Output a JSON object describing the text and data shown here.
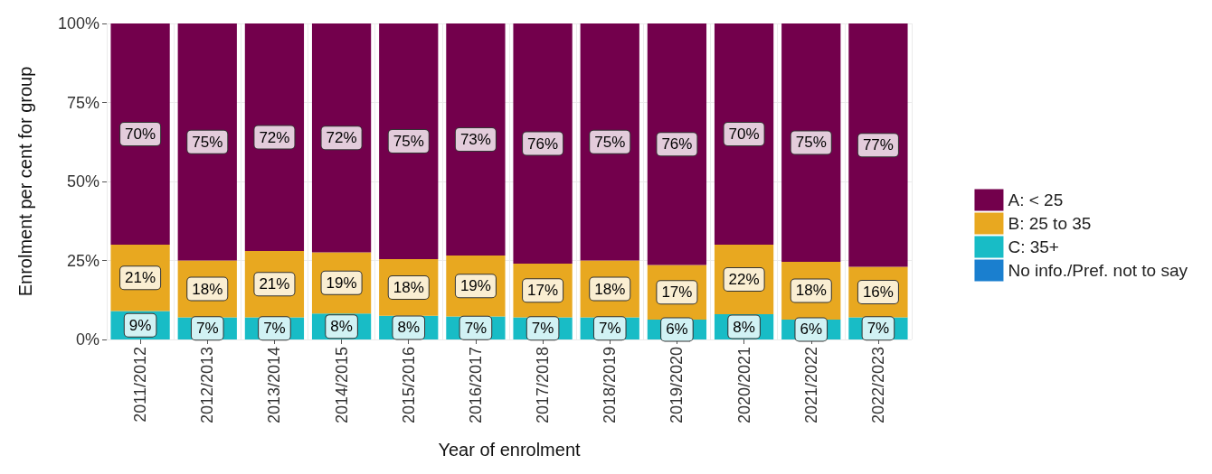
{
  "chart_data": {
    "type": "bar",
    "stacked": true,
    "xlabel": "Year of enrolment",
    "ylabel": "Enrolment per cent for group",
    "categories": [
      "2011/2012",
      "2012/2013",
      "2013/2014",
      "2014/2015",
      "2015/2016",
      "2016/2017",
      "2017/2018",
      "2018/2019",
      "2019/2020",
      "2020/2021",
      "2021/2022",
      "2022/2023"
    ],
    "series": [
      {
        "name": "No info./Pref. not to say",
        "color": "#1a7fcf",
        "values": [
          0,
          0,
          0,
          0,
          0,
          0,
          0,
          0,
          0,
          0,
          0,
          0
        ]
      },
      {
        "name": "C: 35+",
        "color": "#18bcc6",
        "values": [
          9,
          7,
          7,
          8.2,
          7.5,
          7.3,
          7,
          7,
          6.3,
          8,
          6.3,
          7
        ],
        "value_labels": [
          "9%",
          "7%",
          "7%",
          "8%",
          "8%",
          "7%",
          "7%",
          "7%",
          "6%",
          "8%",
          "6%",
          "7%"
        ]
      },
      {
        "name": "B: 25 to 35",
        "color": "#e8a820",
        "values": [
          21,
          18,
          21,
          19.4,
          17.9,
          19.3,
          17,
          18,
          17.3,
          22,
          18.3,
          16
        ],
        "value_labels": [
          "21%",
          "18%",
          "21%",
          "19%",
          "18%",
          "19%",
          "17%",
          "18%",
          "17%",
          "22%",
          "18%",
          "16%"
        ]
      },
      {
        "name": "A: < 25",
        "color": "#73004c",
        "values": [
          70,
          75,
          72,
          72.4,
          74.6,
          73.4,
          76,
          75,
          76.4,
          70,
          75.4,
          77
        ],
        "value_labels": [
          "70%",
          "75%",
          "72%",
          "72%",
          "75%",
          "73%",
          "76%",
          "75%",
          "76%",
          "70%",
          "75%",
          "77%"
        ]
      }
    ],
    "ylim": [
      0,
      100
    ],
    "yticks": [
      {
        "value": 0,
        "label": "0%"
      },
      {
        "value": 25,
        "label": "25%"
      },
      {
        "value": 50,
        "label": "50%"
      },
      {
        "value": 75,
        "label": "75%"
      },
      {
        "value": 100,
        "label": "100%"
      }
    ],
    "grid": true,
    "legend": "right"
  }
}
